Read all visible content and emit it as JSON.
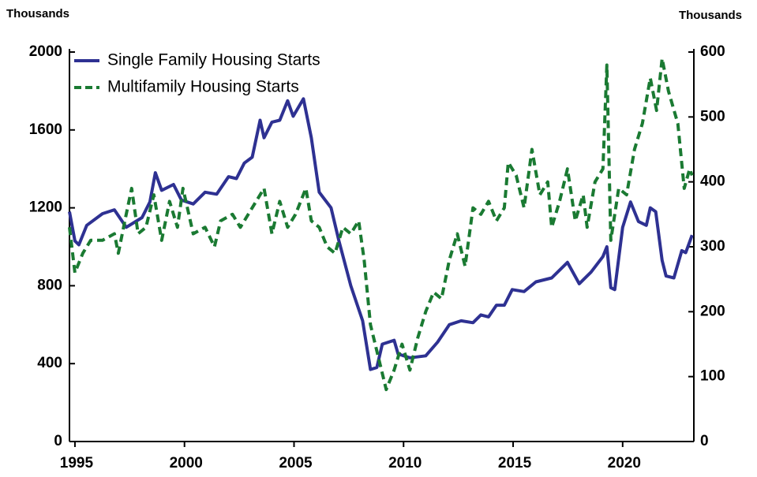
{
  "chart_data": {
    "type": "line",
    "y_label": "Thousands",
    "y2_label": "Thousands",
    "xlim": [
      1994.75,
      2023.25
    ],
    "xticks": [
      1995,
      2000,
      2005,
      2010,
      2015,
      2020
    ],
    "ylim": [
      0,
      2000
    ],
    "yticks": [
      0,
      400,
      800,
      1200,
      1600,
      2000
    ],
    "y2lim": [
      0,
      600
    ],
    "y2ticks": [
      0,
      100,
      200,
      300,
      400,
      500,
      600
    ],
    "legend": "upper left",
    "series": [
      {
        "name": "Single Family Housing Starts",
        "color": "#2e3192",
        "dash": false,
        "axis": "y",
        "x": [
          1994.75,
          1995,
          1995.18,
          1995.54,
          1996.26,
          1996.8,
          1997.34,
          1998.06,
          1998.42,
          1998.67,
          1998.96,
          1999.5,
          1999.86,
          2000.4,
          2000.94,
          2001.47,
          2002.01,
          2002.37,
          2002.73,
          2003.09,
          2003.45,
          2003.63,
          2003.99,
          2004.35,
          2004.71,
          2004.96,
          2005.43,
          2005.79,
          2006.15,
          2006.69,
          2007.05,
          2007.59,
          2008.13,
          2008.49,
          2008.78,
          2009.03,
          2009.57,
          2009.75,
          2010.29,
          2011.01,
          2011.55,
          2012.09,
          2012.63,
          2013.17,
          2013.53,
          2013.88,
          2014.24,
          2014.6,
          2014.96,
          2015.5,
          2016.04,
          2016.76,
          2017.48,
          2018.02,
          2018.56,
          2019.1,
          2019.28,
          2019.46,
          2019.64,
          2020,
          2020.36,
          2020.72,
          2021.08,
          2021.26,
          2021.51,
          2021.8,
          2021.98,
          2022.34,
          2022.7,
          2022.88,
          2023.17
        ],
        "values": [
          1180,
          1030,
          1010,
          1110,
          1170,
          1190,
          1100,
          1150,
          1230,
          1380,
          1290,
          1320,
          1240,
          1220,
          1280,
          1270,
          1360,
          1350,
          1430,
          1460,
          1650,
          1560,
          1640,
          1650,
          1750,
          1670,
          1760,
          1560,
          1280,
          1200,
          1030,
          800,
          620,
          370,
          380,
          500,
          520,
          450,
          430,
          440,
          510,
          600,
          620,
          610,
          650,
          640,
          700,
          700,
          780,
          770,
          820,
          840,
          920,
          810,
          870,
          950,
          1000,
          790,
          780,
          1100,
          1230,
          1130,
          1110,
          1200,
          1180,
          930,
          850,
          840,
          980,
          970,
          1060
        ]
      },
      {
        "name": "Multifamily Housing Starts",
        "color": "#1a7a32",
        "dash": true,
        "axis": "y2",
        "x": [
          1994.75,
          1995,
          1995.36,
          1995.72,
          1996.26,
          1996.8,
          1996.98,
          1997.34,
          1997.59,
          1997.88,
          1998.24,
          1998.6,
          1998.96,
          1999.32,
          1999.68,
          1999.93,
          2000.4,
          2000.94,
          2001.37,
          2001.65,
          2002.19,
          2002.55,
          2003.09,
          2003.63,
          2003.99,
          2004.35,
          2004.71,
          2005.07,
          2005.54,
          2005.79,
          2006.15,
          2006.51,
          2006.87,
          2007.23,
          2007.59,
          2007.95,
          2008.2,
          2008.49,
          2008.85,
          2009.21,
          2009.57,
          2009.93,
          2010.29,
          2010.65,
          2011.01,
          2011.37,
          2011.73,
          2012.09,
          2012.45,
          2012.81,
          2013.17,
          2013.53,
          2013.88,
          2014.24,
          2014.6,
          2014.78,
          2015.14,
          2015.5,
          2015.86,
          2016.22,
          2016.58,
          2016.76,
          2017.12,
          2017.48,
          2017.84,
          2018.2,
          2018.38,
          2018.74,
          2019.1,
          2019.28,
          2019.46,
          2019.82,
          2020.18,
          2020.54,
          2020.9,
          2021.26,
          2021.55,
          2021.8,
          2022.09,
          2022.52,
          2022.81,
          2023.06,
          2023.17
        ],
        "values": [
          330,
          260,
          290,
          310,
          310,
          320,
          290,
          350,
          390,
          320,
          330,
          380,
          310,
          370,
          330,
          390,
          320,
          330,
          300,
          340,
          350,
          330,
          360,
          390,
          320,
          370,
          330,
          350,
          390,
          340,
          330,
          300,
          290,
          330,
          320,
          340,
          280,
          180,
          130,
          80,
          110,
          150,
          110,
          160,
          200,
          230,
          220,
          280,
          320,
          270,
          360,
          350,
          370,
          340,
          360,
          430,
          410,
          360,
          450,
          380,
          400,
          330,
          370,
          420,
          340,
          380,
          330,
          400,
          420,
          580,
          310,
          390,
          380,
          450,
          490,
          560,
          510,
          590,
          540,
          490,
          390,
          420,
          410
        ]
      }
    ]
  }
}
